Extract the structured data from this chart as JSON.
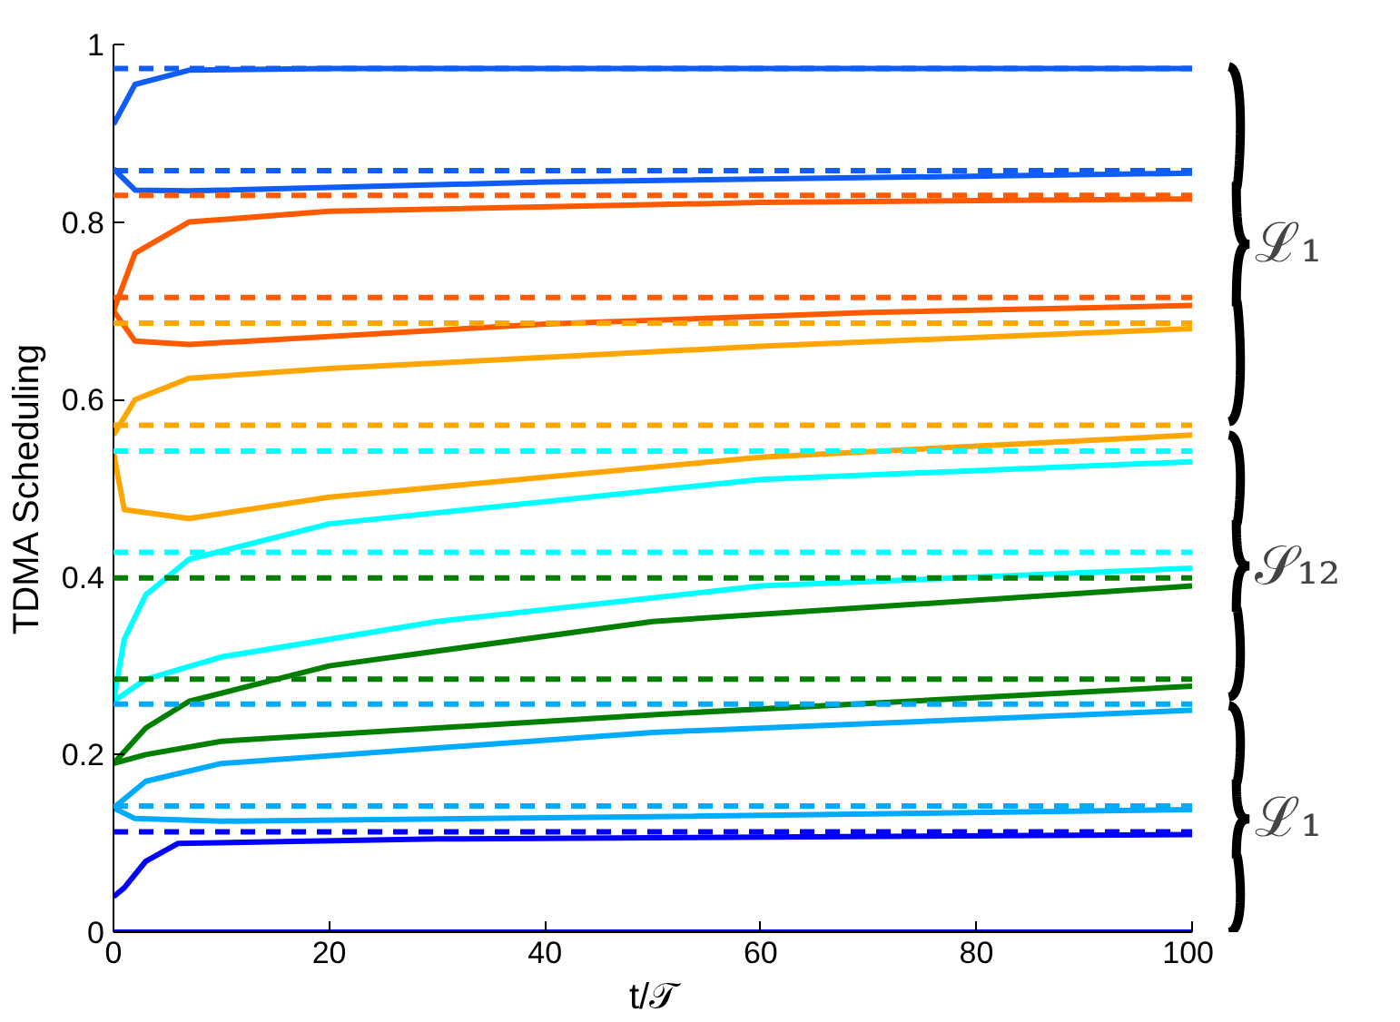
{
  "chart_data": {
    "type": "line",
    "ylabel": "TDMA Scheduling",
    "xlabel": "t/𝒯",
    "xlim": [
      0,
      100
    ],
    "xticks": [
      0,
      20,
      40,
      60,
      80,
      100
    ],
    "ylim": [
      0,
      1
    ],
    "yticks": [
      0,
      0.2,
      0.4,
      0.6,
      0.8,
      1
    ],
    "grid": false,
    "line_style": "solid",
    "marker": "none",
    "series": [
      {
        "color": "#0f5cf7",
        "x": [
          0,
          2,
          7,
          20,
          100
        ],
        "values": [
          0.91,
          0.955,
          0.971,
          0.973,
          0.973
        ]
      },
      {
        "color": "#0f5cf7",
        "x": [
          0,
          2,
          7,
          40,
          100
        ],
        "values": [
          0.86,
          0.836,
          0.835,
          0.845,
          0.855
        ]
      },
      {
        "color": "#ff5a00",
        "x": [
          0,
          2,
          7,
          20,
          60,
          100
        ],
        "values": [
          0.7,
          0.765,
          0.8,
          0.812,
          0.822,
          0.826
        ]
      },
      {
        "color": "#ff5a00",
        "x": [
          0,
          2,
          7,
          40,
          70,
          100
        ],
        "values": [
          0.7,
          0.666,
          0.662,
          0.685,
          0.698,
          0.706
        ]
      },
      {
        "color": "#ffa500",
        "x": [
          0,
          2,
          7,
          20,
          60,
          100
        ],
        "values": [
          0.56,
          0.6,
          0.624,
          0.635,
          0.66,
          0.68
        ]
      },
      {
        "color": "#ffa500",
        "x": [
          0,
          1,
          7,
          20,
          60,
          100
        ],
        "values": [
          0.54,
          0.476,
          0.466,
          0.49,
          0.535,
          0.56
        ]
      },
      {
        "color": "#00ffff",
        "x": [
          0,
          1,
          3,
          7,
          20,
          60,
          100
        ],
        "values": [
          0.26,
          0.33,
          0.38,
          0.42,
          0.46,
          0.51,
          0.53
        ]
      },
      {
        "color": "#00ffff",
        "x": [
          0,
          3,
          10,
          30,
          60,
          100
        ],
        "values": [
          0.26,
          0.285,
          0.31,
          0.35,
          0.39,
          0.41
        ]
      },
      {
        "color": "#007f00",
        "x": [
          0,
          3,
          7,
          20,
          50,
          100
        ],
        "values": [
          0.19,
          0.23,
          0.26,
          0.3,
          0.35,
          0.39
        ]
      },
      {
        "color": "#007f00",
        "x": [
          0,
          3,
          10,
          50,
          100
        ],
        "values": [
          0.19,
          0.2,
          0.215,
          0.245,
          0.277
        ]
      },
      {
        "color": "#00aaff",
        "x": [
          0,
          3,
          10,
          50,
          100
        ],
        "values": [
          0.14,
          0.17,
          0.19,
          0.225,
          0.25
        ]
      },
      {
        "color": "#00aaff",
        "x": [
          0,
          2,
          10,
          50,
          100
        ],
        "values": [
          0.14,
          0.128,
          0.125,
          0.13,
          0.138
        ]
      },
      {
        "color": "#0000ff",
        "x": [
          0,
          1,
          3,
          6,
          30,
          100
        ],
        "values": [
          0.04,
          0.05,
          0.08,
          0.1,
          0.105,
          0.11
        ]
      },
      {
        "color": "#0000ff",
        "x": [
          0,
          100
        ],
        "values": [
          0,
          0
        ]
      }
    ],
    "ref_lines": [
      {
        "axis": "y",
        "value": 0.973,
        "color": "#0f5cf7",
        "line_style": "dashed"
      },
      {
        "axis": "y",
        "value": 0.858,
        "color": "#0f5cf7",
        "line_style": "dashed"
      },
      {
        "axis": "y",
        "value": 0.83,
        "color": "#ff5a00",
        "line_style": "dashed"
      },
      {
        "axis": "y",
        "value": 0.715,
        "color": "#ff5a00",
        "line_style": "dashed"
      },
      {
        "axis": "y",
        "value": 0.686,
        "color": "#ffa500",
        "line_style": "dashed"
      },
      {
        "axis": "y",
        "value": 0.571,
        "color": "#ffa500",
        "line_style": "dashed"
      },
      {
        "axis": "y",
        "value": 0.542,
        "color": "#00ffff",
        "line_style": "dashed"
      },
      {
        "axis": "y",
        "value": 0.428,
        "color": "#00ffff",
        "line_style": "dashed"
      },
      {
        "axis": "y",
        "value": 0.399,
        "color": "#007f00",
        "line_style": "dashed"
      },
      {
        "axis": "y",
        "value": 0.285,
        "color": "#007f00",
        "line_style": "dashed"
      },
      {
        "axis": "y",
        "value": 0.257,
        "color": "#00aaff",
        "line_style": "dashed"
      },
      {
        "axis": "y",
        "value": 0.142,
        "color": "#00aaff",
        "line_style": "dashed"
      },
      {
        "axis": "y",
        "value": 0.113,
        "color": "#0000ff",
        "line_style": "dashed"
      }
    ],
    "annotations": [
      "ℒ₁",
      "𝒮₁₂",
      "ℒ₁"
    ]
  }
}
